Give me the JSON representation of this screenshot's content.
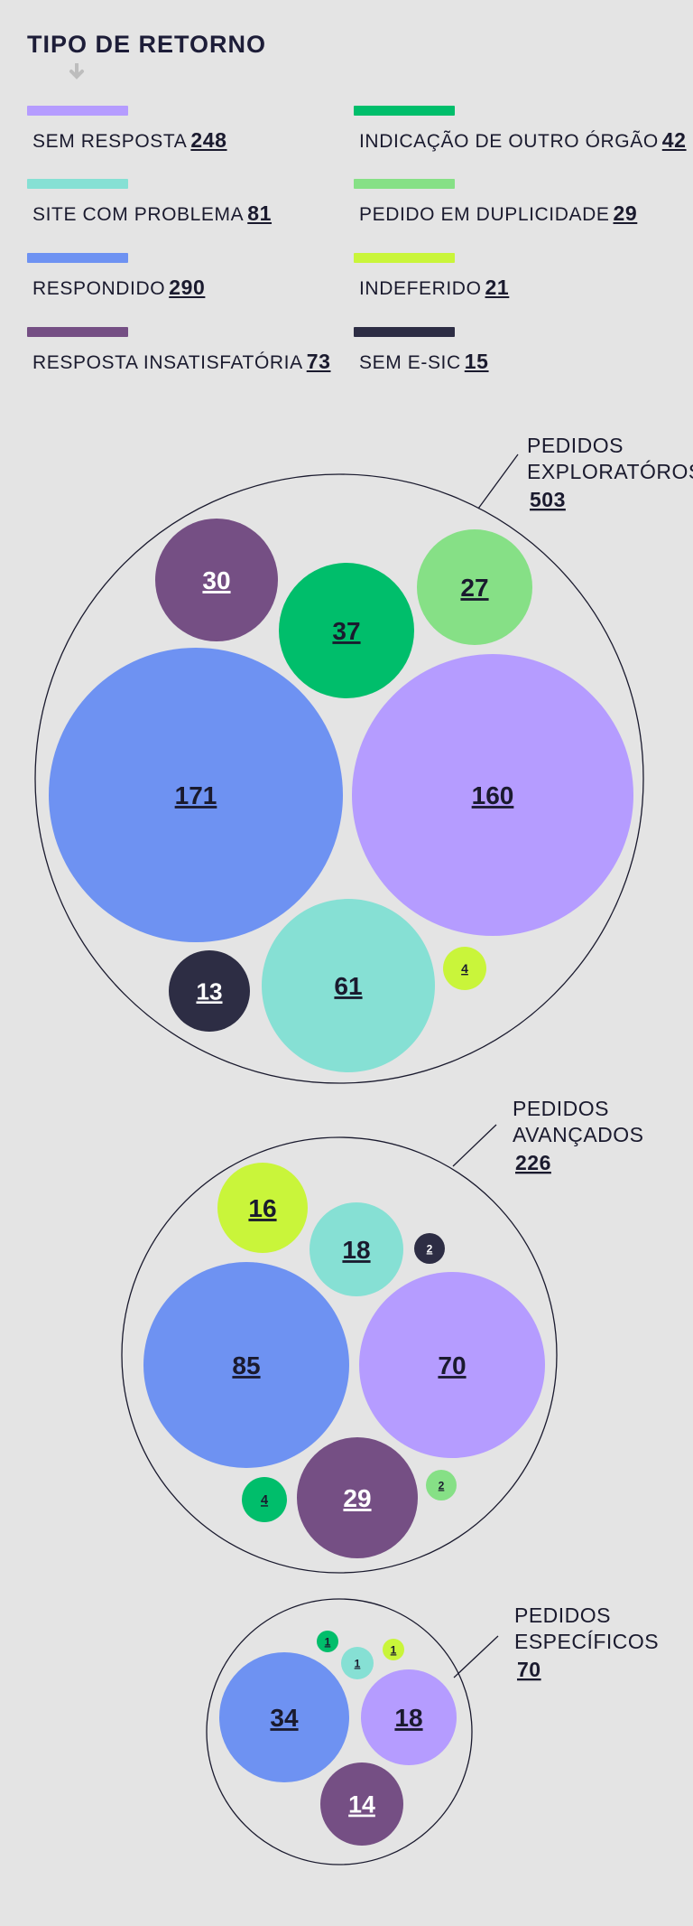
{
  "legend_title": "TIPO DE RETORNO",
  "colors": {
    "sem_resposta": "#b59cff",
    "site_com_problema": "#86e0d4",
    "respondido": "#6e92f2",
    "resposta_insatisfatoria": "#754f84",
    "indicacao_de_outro_orgao": "#00be6b",
    "pedido_em_duplicidade": "#86e086",
    "indeferido": "#c9f53a",
    "sem_e_sic": "#2d2d44"
  },
  "chart_data": {
    "type": "bubble",
    "legend": [
      {
        "key": "sem_resposta",
        "label": "SEM RESPOSTA",
        "total": 248
      },
      {
        "key": "site_com_problema",
        "label": "SITE COM PROBLEMA",
        "total": 81
      },
      {
        "key": "respondido",
        "label": "RESPONDIDO",
        "total": 290
      },
      {
        "key": "resposta_insatisfatoria",
        "label": "RESPOSTA INSATISFATÓRIA",
        "total": 73
      },
      {
        "key": "indicacao_de_outro_orgao",
        "label": "INDICAÇÃO DE OUTRO ÓRGÃO",
        "total": 42
      },
      {
        "key": "pedido_em_duplicidade",
        "label": "PEDIDO EM DUPLICIDADE",
        "total": 29
      },
      {
        "key": "indeferido",
        "label": "INDEFERIDO",
        "total": 21
      },
      {
        "key": "sem_e_sic",
        "label": "SEM E-SIC",
        "total": 15
      }
    ],
    "groups": [
      {
        "label_lines": [
          "PEDIDOS",
          "EXPLORATÓROS"
        ],
        "total": 503,
        "values": {
          "resposta_insatisfatoria": 30,
          "indicacao_de_outro_orgao": 37,
          "pedido_em_duplicidade": 27,
          "respondido": 171,
          "sem_resposta": 160,
          "sem_e_sic": 13,
          "site_com_problema": 61,
          "indeferido": 4
        }
      },
      {
        "label_lines": [
          "PEDIDOS",
          "AVANÇADOS"
        ],
        "total": 226,
        "values": {
          "indeferido": 16,
          "site_com_problema": 18,
          "sem_e_sic": 2,
          "respondido": 85,
          "sem_resposta": 70,
          "indicacao_de_outro_orgao": 4,
          "resposta_insatisfatoria": 29,
          "pedido_em_duplicidade": 2
        }
      },
      {
        "label_lines": [
          "PEDIDOS",
          "ESPECÍFICOS"
        ],
        "total": 70,
        "values": {
          "indicacao_de_outro_orgao": 1,
          "site_com_problema": 1,
          "indeferido": 1,
          "respondido": 34,
          "sem_resposta": 18,
          "resposta_insatisfatoria": 14
        }
      }
    ]
  }
}
